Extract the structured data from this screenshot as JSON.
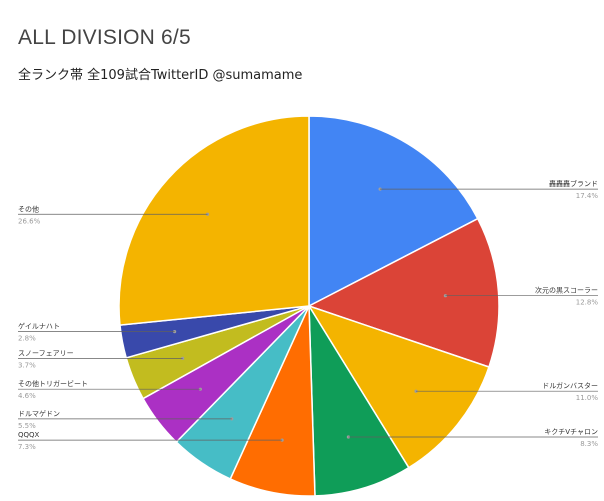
{
  "header": {
    "title": "ALL DIVISION 6/5",
    "subtitle": "全ランク帯 全109試合TwitterID @sumamame"
  },
  "chart_data": {
    "type": "pie",
    "title": "ALL DIVISION 6/5",
    "subtitle": "全ランク帯 全109試合TwitterID @sumamame",
    "start_angle": "12 o'clock, clockwise",
    "series": [
      {
        "name": "轟轟轟ブランド",
        "pct_label": "17.4%",
        "value": 17.4,
        "color": "#4285f4",
        "side": "right"
      },
      {
        "name": "次元の黒スコーラー",
        "pct_label": "12.8%",
        "value": 12.8,
        "color": "#db4437",
        "side": "right"
      },
      {
        "name": "ドルガンバスター",
        "pct_label": "11.0%",
        "value": 11.0,
        "color": "#f4b400",
        "side": "right"
      },
      {
        "name": "キクチVチャロン",
        "pct_label": "8.3%",
        "value": 8.3,
        "color": "#0f9d58",
        "side": "right"
      },
      {
        "name": "QQQX",
        "pct_label": "7.3%",
        "value": 7.3,
        "color": "#ff6d01",
        "side": "left"
      },
      {
        "name": "ドルマゲドン",
        "pct_label": "5.5%",
        "value": 5.5,
        "color": "#46bdc6",
        "side": "left"
      },
      {
        "name": "その他トリガービート",
        "pct_label": "4.6%",
        "value": 4.6,
        "color": "#ab30c4",
        "side": "left"
      },
      {
        "name": "スノーフェアリー",
        "pct_label": "3.7%",
        "value": 3.7,
        "color": "#c2bc1f",
        "side": "left"
      },
      {
        "name": "ゲイルナハト",
        "pct_label": "2.8%",
        "value": 2.8,
        "color": "#3949ab",
        "side": "left"
      },
      {
        "name": "その他",
        "pct_label": "26.6%",
        "value": 26.6,
        "color": "#f4b400",
        "side": "left"
      }
    ]
  }
}
